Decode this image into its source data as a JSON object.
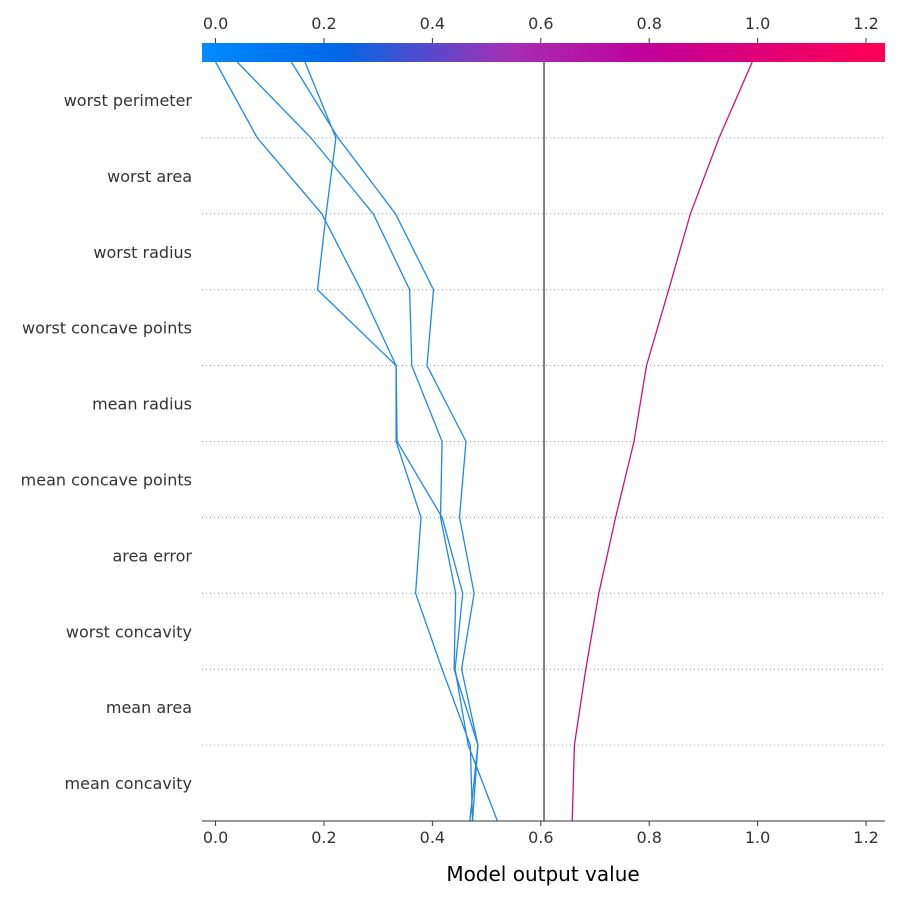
{
  "chart_data": {
    "type": "line",
    "subtype": "shap-decision-plot",
    "xlabel": "Model output value",
    "xlim": [
      -0.025,
      1.235
    ],
    "x_ticks": [
      "0.0",
      "0.2",
      "0.4",
      "0.6",
      "0.8",
      "1.0",
      "1.2"
    ],
    "x_tick_values": [
      0.0,
      0.2,
      0.4,
      0.6,
      0.8,
      1.0,
      1.2
    ],
    "base_value": 0.606,
    "features": [
      "worst perimeter",
      "worst area",
      "worst radius",
      "worst concave points",
      "mean radius",
      "mean concave points",
      "area error",
      "worst concavity",
      "mean area",
      "mean concavity"
    ],
    "colorbar": {
      "range": [
        0.0,
        1.235
      ],
      "colors": [
        "#008bfb",
        "#0067e6",
        "#a42fb4",
        "#c2009a",
        "#ff0052"
      ],
      "stops": [
        0.0,
        0.2,
        0.45,
        0.65,
        1.0
      ]
    },
    "series": [
      {
        "color": "#1e88e5",
        "values": [
          0.52,
          0.466,
          0.442,
          0.456,
          0.418,
          0.335,
          0.333,
          0.268,
          0.196,
          0.077,
          0.0
        ]
      },
      {
        "color": "#1e88e5",
        "values": [
          0.474,
          0.47,
          0.418,
          0.369,
          0.379,
          0.333,
          0.333,
          0.188,
          0.204,
          0.222,
          0.165
        ]
      },
      {
        "color": "#1e88e5",
        "values": [
          0.469,
          0.484,
          0.44,
          0.443,
          0.415,
          0.418,
          0.362,
          0.358,
          0.291,
          0.176,
          0.04
        ]
      },
      {
        "color": "#1e88e5",
        "values": [
          0.474,
          0.484,
          0.454,
          0.477,
          0.45,
          0.462,
          0.39,
          0.402,
          0.332,
          0.226,
          0.14
        ]
      },
      {
        "color": "#d0117c",
        "values": [
          0.658,
          0.662,
          0.683,
          0.707,
          0.738,
          0.772,
          0.795,
          0.836,
          0.876,
          0.929,
          0.99
        ]
      }
    ]
  }
}
